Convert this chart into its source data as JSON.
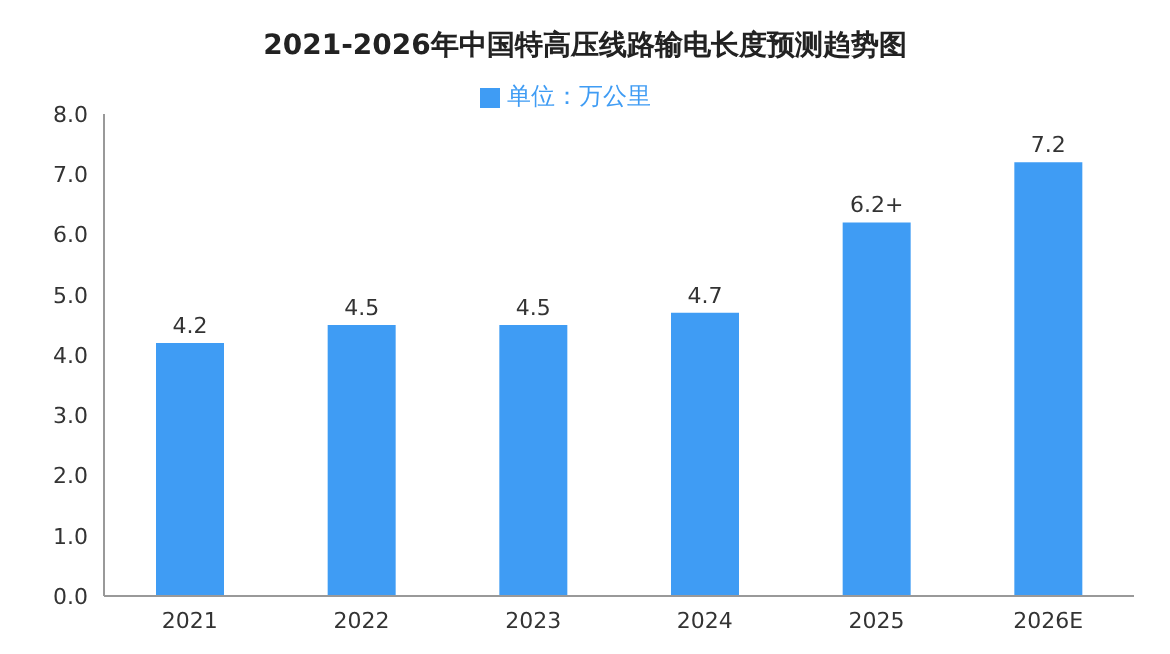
{
  "chart_data": {
    "type": "bar",
    "title": "2021-2026年中国特高压线路输电长度预测趋势图",
    "categories": [
      "2021",
      "2022",
      "2023",
      "2024",
      "2025",
      "2026E"
    ],
    "series": [
      {
        "name": "单位：万公里",
        "color": "#3f9cf4",
        "values": [
          4.2,
          4.5,
          4.5,
          4.7,
          6.2,
          7.2
        ],
        "value_labels": [
          "4.2",
          "4.5",
          "4.5",
          "4.7",
          "6.2+",
          "7.2"
        ]
      }
    ],
    "ylim": [
      0,
      8
    ],
    "yticks": [
      {
        "value": 0,
        "label": "0.0"
      },
      {
        "value": 1,
        "label": "1.0"
      },
      {
        "value": 2,
        "label": "2.0"
      },
      {
        "value": 3,
        "label": "3.0"
      },
      {
        "value": 4,
        "label": "4.0"
      },
      {
        "value": 5,
        "label": "5.0"
      },
      {
        "value": 6,
        "label": "6.0"
      },
      {
        "value": 7,
        "label": "7.0"
      },
      {
        "value": 8,
        "label": "8.0"
      }
    ],
    "grid": false,
    "legend": "top"
  }
}
